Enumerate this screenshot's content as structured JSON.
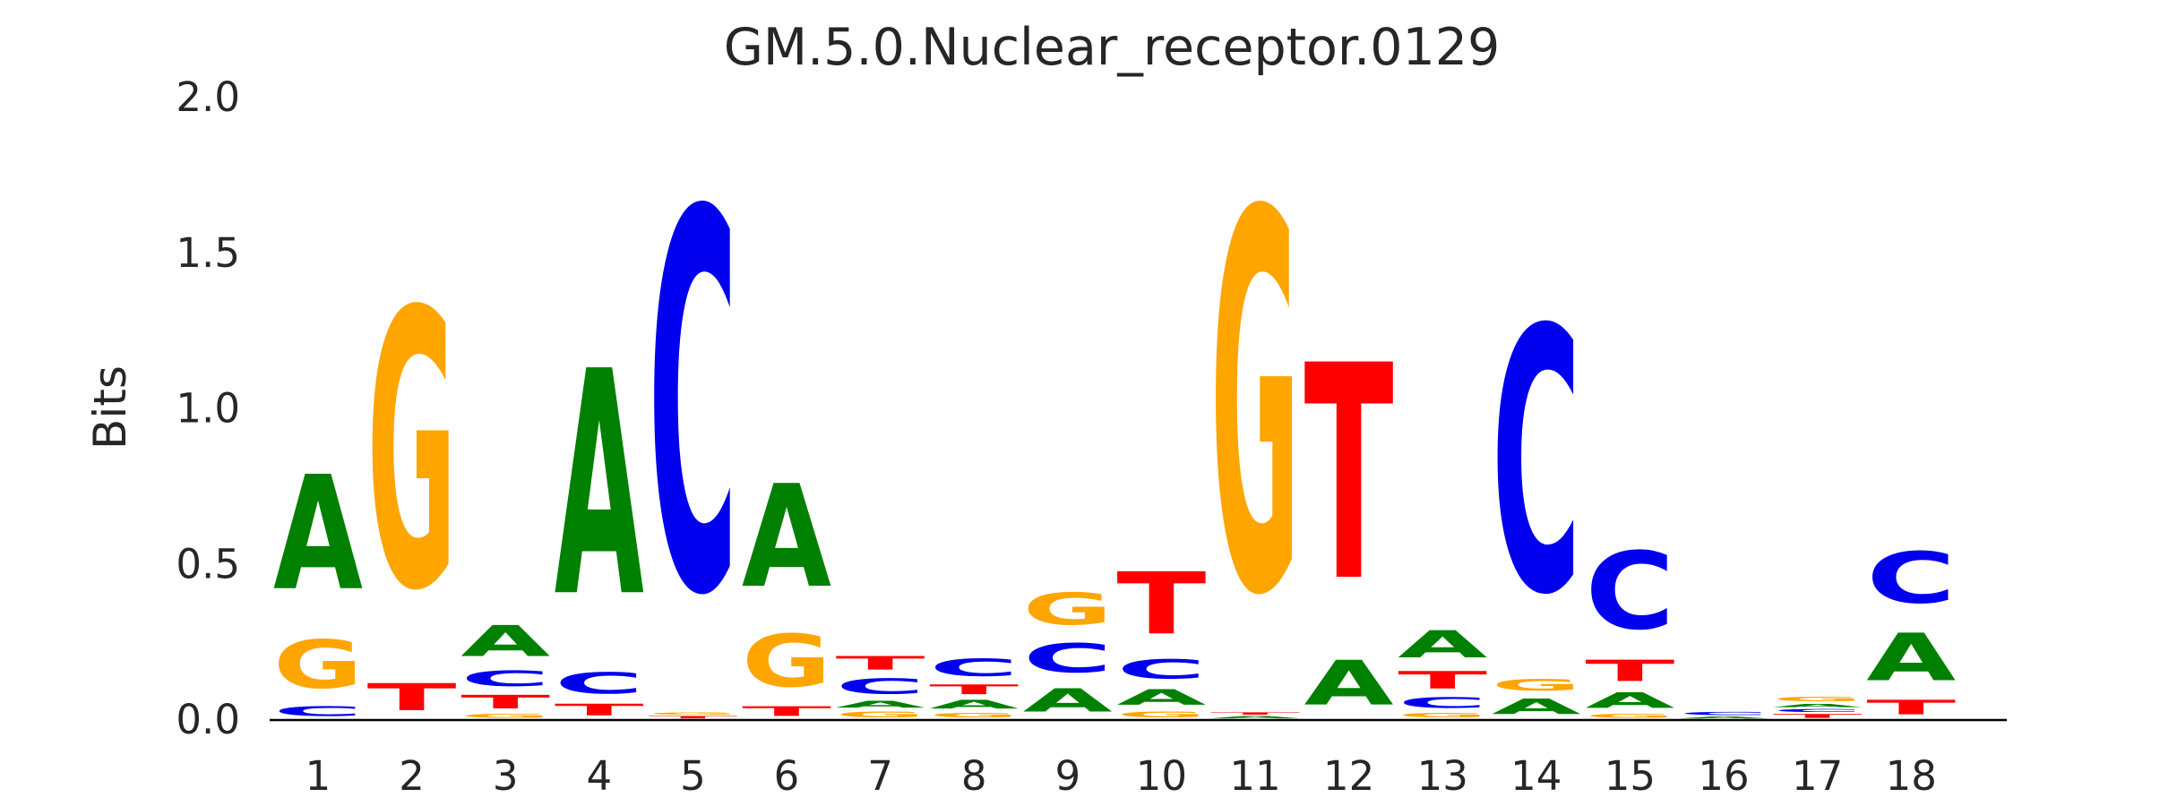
{
  "title": "GM.5.0.Nuclear_receptor.0129",
  "chart_data": {
    "type": "sequence_logo",
    "title": "GM.5.0.Nuclear_receptor.0129",
    "ylabel": "Bits",
    "ylim": [
      0,
      2
    ],
    "ytick_values": [
      0,
      0.5,
      1,
      1.5,
      2
    ],
    "ytick_labels": [
      "0.0",
      "0.5",
      "1.0",
      "1.5",
      "2.0"
    ],
    "xtick_labels": [
      "1",
      "2",
      "3",
      "4",
      "5",
      "6",
      "7",
      "8",
      "9",
      "10",
      "11",
      "12",
      "13",
      "14",
      "15",
      "16",
      "17",
      "18"
    ],
    "grid": false,
    "legend": "none",
    "colors": {
      "A": "#008000",
      "C": "#0000EE",
      "G": "#FFA500",
      "T": "#FF0000"
    },
    "units": "bits",
    "positions": [
      {
        "pos": 1,
        "stack": [
          [
            "C",
            0.05
          ],
          [
            "G",
            0.25
          ],
          [
            "A",
            0.59
          ]
        ]
      },
      {
        "pos": 2,
        "stack": [
          [
            "T",
            0.14
          ],
          [
            "G",
            1.43
          ]
        ]
      },
      {
        "pos": 3,
        "stack": [
          [
            "G",
            0.02
          ],
          [
            "T",
            0.07
          ],
          [
            "C",
            0.08
          ],
          [
            "A",
            0.16
          ]
        ]
      },
      {
        "pos": 4,
        "stack": [
          [
            "T",
            0.06
          ],
          [
            "C",
            0.11
          ],
          [
            "A",
            1.16
          ]
        ]
      },
      {
        "pos": 5,
        "stack": [
          [
            "T",
            0.012
          ],
          [
            "G",
            0.012
          ],
          [
            "C",
            1.956
          ]
        ]
      },
      {
        "pos": 6,
        "stack": [
          [
            "T",
            0.05
          ],
          [
            "G",
            0.27
          ],
          [
            "A",
            0.53
          ]
        ]
      },
      {
        "pos": 7,
        "stack": [
          [
            "G",
            0.03
          ],
          [
            "A",
            0.035
          ],
          [
            "C",
            0.08
          ],
          [
            "T",
            0.07
          ]
        ]
      },
      {
        "pos": 8,
        "stack": [
          [
            "G",
            0.025
          ],
          [
            "A",
            0.045
          ],
          [
            "T",
            0.05
          ],
          [
            "C",
            0.09
          ]
        ]
      },
      {
        "pos": 9,
        "stack": [
          [
            "A",
            0.12
          ],
          [
            "C",
            0.15
          ],
          [
            "G",
            0.165
          ]
        ]
      },
      {
        "pos": 10,
        "stack": [
          [
            "G",
            0.03
          ],
          [
            "A",
            0.08
          ],
          [
            "C",
            0.1
          ],
          [
            "T",
            0.32
          ]
        ]
      },
      {
        "pos": 11,
        "stack": [
          [
            "A",
            0.012
          ],
          [
            "T",
            0.012
          ],
          [
            "G",
            1.956
          ]
        ]
      },
      {
        "pos": 12,
        "stack": [
          [
            "A",
            0.23
          ],
          [
            "T",
            1.11
          ]
        ]
      },
      {
        "pos": 13,
        "stack": [
          [
            "G",
            0.025
          ],
          [
            "C",
            0.055
          ],
          [
            "T",
            0.09
          ],
          [
            "A",
            0.14
          ]
        ]
      },
      {
        "pos": 14,
        "stack": [
          [
            "A",
            0.08
          ],
          [
            "G",
            0.06
          ],
          [
            "C",
            1.36
          ]
        ]
      },
      {
        "pos": 15,
        "stack": [
          [
            "G",
            0.02
          ],
          [
            "A",
            0.08
          ],
          [
            "T",
            0.11
          ],
          [
            "C",
            0.4
          ]
        ]
      },
      {
        "pos": 16,
        "stack": [
          [
            "A",
            0.01
          ],
          [
            "C",
            0.016
          ]
        ]
      },
      {
        "pos": 17,
        "stack": [
          [
            "T",
            0.02
          ],
          [
            "C",
            0.015
          ],
          [
            "A",
            0.017
          ],
          [
            "G",
            0.025
          ]
        ]
      },
      {
        "pos": 18,
        "stack": [
          [
            "T",
            0.075
          ],
          [
            "A",
            0.245
          ],
          [
            "C",
            0.265
          ]
        ]
      }
    ]
  }
}
